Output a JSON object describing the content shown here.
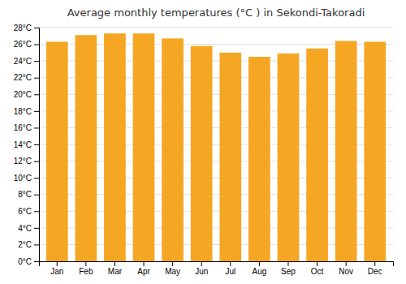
{
  "chart_data": {
    "type": "bar",
    "title": "Average monthly temperatures (°C ) in Sekondi-Takoradi",
    "categories": [
      "Jan",
      "Feb",
      "Mar",
      "Apr",
      "May",
      "Jun",
      "Jul",
      "Aug",
      "Sep",
      "Oct",
      "Nov",
      "Dec"
    ],
    "values": [
      26.3,
      27.1,
      27.3,
      27.3,
      26.7,
      25.8,
      25.0,
      24.5,
      24.9,
      25.5,
      26.4,
      26.3
    ],
    "color": "#F5A623",
    "ylim": [
      0,
      28
    ],
    "yticks": [
      {
        "value": 0,
        "label": "0°C"
      },
      {
        "value": 2,
        "label": "2°C"
      },
      {
        "value": 4,
        "label": "4°C"
      },
      {
        "value": 6,
        "label": "6°C"
      },
      {
        "value": 8,
        "label": "8°C"
      },
      {
        "value": 10,
        "label": "10°C"
      },
      {
        "value": 12,
        "label": "12°C"
      },
      {
        "value": 14,
        "label": "14°C"
      },
      {
        "value": 16,
        "label": "16°C"
      },
      {
        "value": 18,
        "label": "18°C"
      },
      {
        "value": 20,
        "label": "20°C"
      },
      {
        "value": 22,
        "label": "22°C"
      },
      {
        "value": 24,
        "label": "24°C"
      },
      {
        "value": 26,
        "label": "26°C"
      },
      {
        "value": 28,
        "label": "28°C"
      }
    ],
    "grid": true
  }
}
